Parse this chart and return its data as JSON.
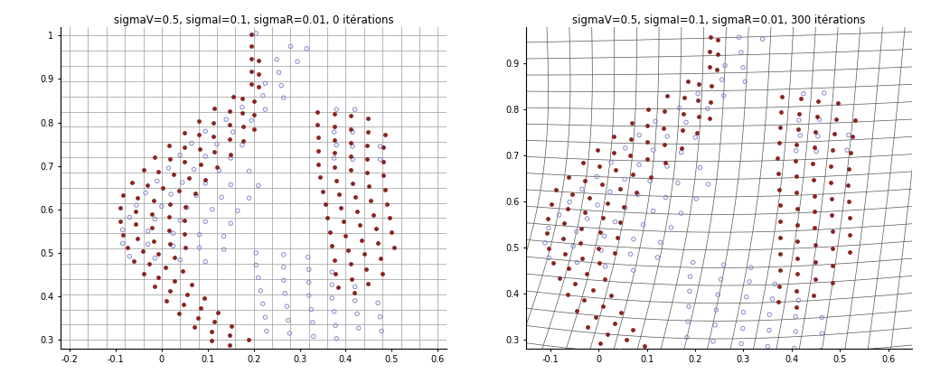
{
  "title1": "sigmaV=0.5, sigmaI=0.1, sigmaR=0.01, 0 itérations",
  "title2": "sigmaV=0.5, sigmaI=0.1, sigmaR=0.01, 300 itérations",
  "xlim1": [
    -0.22,
    0.62
  ],
  "ylim1": [
    0.28,
    1.02
  ],
  "xlim2": [
    -0.15,
    0.65
  ],
  "ylim2": [
    0.28,
    0.98
  ],
  "xticks1": [
    -0.2,
    -0.1,
    0.0,
    0.1,
    0.2,
    0.3,
    0.4,
    0.5,
    0.6
  ],
  "yticks1": [
    0.3,
    0.4,
    0.5,
    0.6,
    0.7,
    0.8,
    0.9,
    1.0
  ],
  "xticks2": [
    -0.1,
    0.0,
    0.1,
    0.2,
    0.3,
    0.4,
    0.5,
    0.6
  ],
  "yticks2": [
    0.3,
    0.4,
    0.5,
    0.6,
    0.7,
    0.8,
    0.9
  ],
  "grid_color": "#888888",
  "blue_color": "#8888cc",
  "red_color": "#882222",
  "bg_color": "#ffffff",
  "blue_pts": [
    [
      0.205,
      1.005
    ],
    [
      0.28,
      0.975
    ],
    [
      0.315,
      0.97
    ],
    [
      0.25,
      0.945
    ],
    [
      0.295,
      0.94
    ],
    [
      0.255,
      0.915
    ],
    [
      0.225,
      0.89
    ],
    [
      0.26,
      0.885
    ],
    [
      0.22,
      0.862
    ],
    [
      0.265,
      0.857
    ],
    [
      0.175,
      0.835
    ],
    [
      0.225,
      0.83
    ],
    [
      0.38,
      0.83
    ],
    [
      0.42,
      0.83
    ],
    [
      0.14,
      0.807
    ],
    [
      0.195,
      0.805
    ],
    [
      0.095,
      0.78
    ],
    [
      0.155,
      0.778
    ],
    [
      0.375,
      0.778
    ],
    [
      0.415,
      0.778
    ],
    [
      0.065,
      0.752
    ],
    [
      0.12,
      0.75
    ],
    [
      0.175,
      0.748
    ],
    [
      0.38,
      0.748
    ],
    [
      0.415,
      0.745
    ],
    [
      0.475,
      0.745
    ],
    [
      0.04,
      0.725
    ],
    [
      0.095,
      0.722
    ],
    [
      0.15,
      0.718
    ],
    [
      0.375,
      0.718
    ],
    [
      0.415,
      0.715
    ],
    [
      0.475,
      0.715
    ],
    [
      0.015,
      0.695
    ],
    [
      0.07,
      0.692
    ],
    [
      0.125,
      0.69
    ],
    [
      0.19,
      0.688
    ],
    [
      -0.01,
      0.665
    ],
    [
      0.045,
      0.662
    ],
    [
      0.095,
      0.66
    ],
    [
      0.15,
      0.657
    ],
    [
      0.21,
      0.655
    ],
    [
      -0.035,
      0.638
    ],
    [
      0.02,
      0.635
    ],
    [
      0.075,
      0.632
    ],
    [
      0.13,
      0.628
    ],
    [
      0.19,
      0.626
    ],
    [
      -0.055,
      0.61
    ],
    [
      0.0,
      0.607
    ],
    [
      0.055,
      0.604
    ],
    [
      0.11,
      0.6
    ],
    [
      0.165,
      0.597
    ],
    [
      -0.07,
      0.582
    ],
    [
      -0.015,
      0.578
    ],
    [
      0.04,
      0.575
    ],
    [
      0.095,
      0.572
    ],
    [
      0.15,
      0.568
    ],
    [
      -0.085,
      0.553
    ],
    [
      -0.03,
      0.55
    ],
    [
      0.025,
      0.545
    ],
    [
      0.082,
      0.542
    ],
    [
      0.135,
      0.538
    ],
    [
      -0.085,
      0.522
    ],
    [
      -0.03,
      0.52
    ],
    [
      0.025,
      0.516
    ],
    [
      0.082,
      0.512
    ],
    [
      0.135,
      0.508
    ],
    [
      -0.07,
      0.492
    ],
    [
      -0.015,
      0.488
    ],
    [
      0.04,
      0.484
    ],
    [
      0.095,
      0.48
    ],
    [
      0.205,
      0.5
    ],
    [
      0.265,
      0.496
    ],
    [
      0.318,
      0.49
    ],
    [
      0.205,
      0.472
    ],
    [
      0.265,
      0.467
    ],
    [
      0.32,
      0.462
    ],
    [
      0.37,
      0.456
    ],
    [
      0.21,
      0.443
    ],
    [
      0.265,
      0.437
    ],
    [
      0.32,
      0.432
    ],
    [
      0.37,
      0.427
    ],
    [
      0.42,
      0.422
    ],
    [
      0.215,
      0.413
    ],
    [
      0.268,
      0.407
    ],
    [
      0.32,
      0.402
    ],
    [
      0.37,
      0.396
    ],
    [
      0.42,
      0.39
    ],
    [
      0.47,
      0.385
    ],
    [
      0.22,
      0.383
    ],
    [
      0.272,
      0.377
    ],
    [
      0.325,
      0.37
    ],
    [
      0.375,
      0.365
    ],
    [
      0.425,
      0.36
    ],
    [
      0.475,
      0.353
    ],
    [
      0.225,
      0.352
    ],
    [
      0.275,
      0.345
    ],
    [
      0.328,
      0.34
    ],
    [
      0.378,
      0.333
    ],
    [
      0.428,
      0.327
    ],
    [
      0.478,
      0.32
    ],
    [
      0.228,
      0.32
    ],
    [
      0.278,
      0.315
    ],
    [
      0.33,
      0.308
    ],
    [
      0.38,
      0.303
    ]
  ],
  "red_pts": [
    [
      0.195,
      1.002
    ],
    [
      0.195,
      0.975
    ],
    [
      0.195,
      0.947
    ],
    [
      0.21,
      0.942
    ],
    [
      0.195,
      0.918
    ],
    [
      0.21,
      0.912
    ],
    [
      0.195,
      0.888
    ],
    [
      0.21,
      0.882
    ],
    [
      0.155,
      0.86
    ],
    [
      0.175,
      0.855
    ],
    [
      0.2,
      0.85
    ],
    [
      0.115,
      0.832
    ],
    [
      0.148,
      0.827
    ],
    [
      0.175,
      0.822
    ],
    [
      0.2,
      0.817
    ],
    [
      0.08,
      0.804
    ],
    [
      0.112,
      0.8
    ],
    [
      0.148,
      0.795
    ],
    [
      0.178,
      0.79
    ],
    [
      0.2,
      0.785
    ],
    [
      0.05,
      0.776
    ],
    [
      0.08,
      0.772
    ],
    [
      0.112,
      0.767
    ],
    [
      0.148,
      0.762
    ],
    [
      0.178,
      0.757
    ],
    [
      0.015,
      0.748
    ],
    [
      0.05,
      0.743
    ],
    [
      0.082,
      0.738
    ],
    [
      0.115,
      0.733
    ],
    [
      0.15,
      0.727
    ],
    [
      -0.015,
      0.72
    ],
    [
      0.018,
      0.715
    ],
    [
      0.05,
      0.71
    ],
    [
      0.085,
      0.704
    ],
    [
      0.12,
      0.698
    ],
    [
      -0.04,
      0.692
    ],
    [
      -0.008,
      0.686
    ],
    [
      0.025,
      0.68
    ],
    [
      0.06,
      0.673
    ],
    [
      0.095,
      0.668
    ],
    [
      -0.065,
      0.662
    ],
    [
      -0.032,
      0.656
    ],
    [
      0.002,
      0.65
    ],
    [
      0.038,
      0.643
    ],
    [
      0.072,
      0.637
    ],
    [
      -0.085,
      0.633
    ],
    [
      -0.052,
      0.626
    ],
    [
      -0.018,
      0.62
    ],
    [
      0.018,
      0.612
    ],
    [
      0.052,
      0.606
    ],
    [
      -0.09,
      0.603
    ],
    [
      -0.057,
      0.596
    ],
    [
      -0.022,
      0.59
    ],
    [
      0.015,
      0.582
    ],
    [
      0.05,
      0.575
    ],
    [
      -0.09,
      0.573
    ],
    [
      -0.057,
      0.566
    ],
    [
      -0.022,
      0.558
    ],
    [
      0.015,
      0.552
    ],
    [
      0.05,
      0.544
    ],
    [
      -0.085,
      0.542
    ],
    [
      -0.052,
      0.534
    ],
    [
      -0.018,
      0.527
    ],
    [
      0.018,
      0.52
    ],
    [
      0.052,
      0.512
    ],
    [
      -0.075,
      0.512
    ],
    [
      -0.042,
      0.504
    ],
    [
      -0.008,
      0.497
    ],
    [
      0.028,
      0.49
    ],
    [
      -0.06,
      0.482
    ],
    [
      -0.028,
      0.474
    ],
    [
      0.008,
      0.466
    ],
    [
      0.045,
      0.458
    ],
    [
      -0.04,
      0.452
    ],
    [
      -0.008,
      0.444
    ],
    [
      0.028,
      0.435
    ],
    [
      0.065,
      0.427
    ],
    [
      -0.015,
      0.422
    ],
    [
      0.018,
      0.413
    ],
    [
      0.055,
      0.404
    ],
    [
      0.092,
      0.395
    ],
    [
      0.01,
      0.39
    ],
    [
      0.047,
      0.382
    ],
    [
      0.085,
      0.373
    ],
    [
      0.122,
      0.363
    ],
    [
      0.038,
      0.36
    ],
    [
      0.078,
      0.35
    ],
    [
      0.115,
      0.342
    ],
    [
      0.152,
      0.332
    ],
    [
      0.07,
      0.33
    ],
    [
      0.108,
      0.32
    ],
    [
      0.148,
      0.31
    ],
    [
      0.188,
      0.3
    ],
    [
      0.108,
      0.298
    ],
    [
      0.148,
      0.288
    ],
    [
      0.338,
      0.825
    ],
    [
      0.375,
      0.82
    ],
    [
      0.41,
      0.815
    ],
    [
      0.448,
      0.81
    ],
    [
      0.338,
      0.795
    ],
    [
      0.375,
      0.79
    ],
    [
      0.41,
      0.784
    ],
    [
      0.448,
      0.778
    ],
    [
      0.485,
      0.773
    ],
    [
      0.34,
      0.765
    ],
    [
      0.375,
      0.76
    ],
    [
      0.41,
      0.754
    ],
    [
      0.447,
      0.748
    ],
    [
      0.482,
      0.742
    ],
    [
      0.34,
      0.735
    ],
    [
      0.375,
      0.73
    ],
    [
      0.41,
      0.723
    ],
    [
      0.447,
      0.717
    ],
    [
      0.482,
      0.71
    ],
    [
      0.34,
      0.704
    ],
    [
      0.375,
      0.698
    ],
    [
      0.41,
      0.692
    ],
    [
      0.447,
      0.685
    ],
    [
      0.482,
      0.678
    ],
    [
      0.345,
      0.674
    ],
    [
      0.38,
      0.667
    ],
    [
      0.415,
      0.66
    ],
    [
      0.45,
      0.653
    ],
    [
      0.485,
      0.646
    ],
    [
      0.35,
      0.642
    ],
    [
      0.385,
      0.635
    ],
    [
      0.42,
      0.628
    ],
    [
      0.455,
      0.62
    ],
    [
      0.49,
      0.613
    ],
    [
      0.355,
      0.612
    ],
    [
      0.39,
      0.604
    ],
    [
      0.425,
      0.596
    ],
    [
      0.46,
      0.588
    ],
    [
      0.495,
      0.58
    ],
    [
      0.36,
      0.58
    ],
    [
      0.395,
      0.572
    ],
    [
      0.43,
      0.564
    ],
    [
      0.465,
      0.555
    ],
    [
      0.5,
      0.547
    ],
    [
      0.365,
      0.548
    ],
    [
      0.4,
      0.54
    ],
    [
      0.435,
      0.53
    ],
    [
      0.47,
      0.522
    ],
    [
      0.505,
      0.512
    ],
    [
      0.37,
      0.516
    ],
    [
      0.405,
      0.506
    ],
    [
      0.44,
      0.497
    ],
    [
      0.475,
      0.487
    ],
    [
      0.375,
      0.484
    ],
    [
      0.41,
      0.474
    ],
    [
      0.445,
      0.463
    ],
    [
      0.48,
      0.453
    ],
    [
      0.378,
      0.452
    ],
    [
      0.413,
      0.44
    ],
    [
      0.448,
      0.43
    ],
    [
      0.383,
      0.42
    ],
    [
      0.418,
      0.408
    ]
  ],
  "figsize": [
    10.3,
    4.24
  ],
  "dpi": 100
}
